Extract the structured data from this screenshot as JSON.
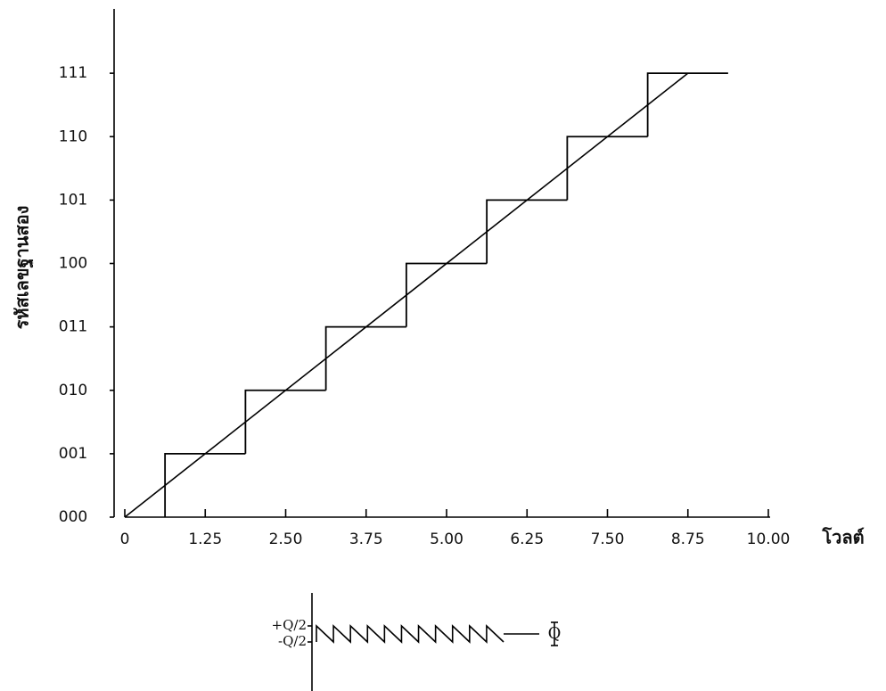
{
  "chart_data": [
    {
      "type": "line",
      "x_label": "โวลต์",
      "y_label": "รหัสเลขฐานสอง",
      "xlim": [
        0,
        10
      ],
      "ylim": [
        0,
        8
      ],
      "xticks": [
        0,
        1.25,
        {
          "value": 2.5,
          "label": "2.50"
        },
        3.75,
        {
          "value": 5,
          "label": "5.00"
        },
        6.25,
        {
          "value": 7.5,
          "label": "7.50"
        },
        8.75,
        {
          "value": 10,
          "label": "10.00"
        }
      ],
      "yticks": [
        {
          "value": 0,
          "label": "000"
        },
        {
          "value": 1,
          "label": "001"
        },
        {
          "value": 2,
          "label": "010"
        },
        {
          "value": 3,
          "label": "011"
        },
        {
          "value": 4,
          "label": "100"
        },
        {
          "value": 5,
          "label": "101"
        },
        {
          "value": 6,
          "label": "110"
        },
        {
          "value": 7,
          "label": "111"
        }
      ],
      "series": [
        {
          "style": "step",
          "color": "#000000",
          "x": [
            0.625,
            1.875,
            3.125,
            4.375,
            5.625,
            6.875,
            8.125,
            9.375
          ],
          "values": [
            1,
            2,
            3,
            4,
            5,
            6,
            7,
            7
          ]
        },
        {
          "style": "line",
          "color": "#000000",
          "x": [
            0,
            8.75
          ],
          "values": [
            0,
            7
          ]
        }
      ]
    },
    {
      "type": "line",
      "annotation": "Q",
      "xlim": [
        0,
        11
      ],
      "ylim": [
        -3,
        3
      ],
      "yticks": [
        {
          "value": 0.5,
          "label": "+Q/2"
        },
        {
          "value": -0.5,
          "label": "-Q/2"
        }
      ],
      "series": [
        {
          "style": "line",
          "color": "#000000",
          "x": [
            0,
            0,
            1,
            1,
            2,
            2,
            3,
            3,
            4,
            4,
            5,
            5,
            6,
            6,
            7,
            7,
            8,
            8,
            9,
            9,
            10,
            10,
            11
          ],
          "values": [
            -0.5,
            0.5,
            -0.5,
            0.5,
            -0.5,
            0.5,
            -0.5,
            0.5,
            -0.5,
            0.5,
            -0.5,
            0.5,
            -0.5,
            0.5,
            -0.5,
            0.5,
            -0.5,
            0.5,
            -0.5,
            0.5,
            -0.5,
            0.5,
            -0.5
          ]
        }
      ]
    }
  ]
}
